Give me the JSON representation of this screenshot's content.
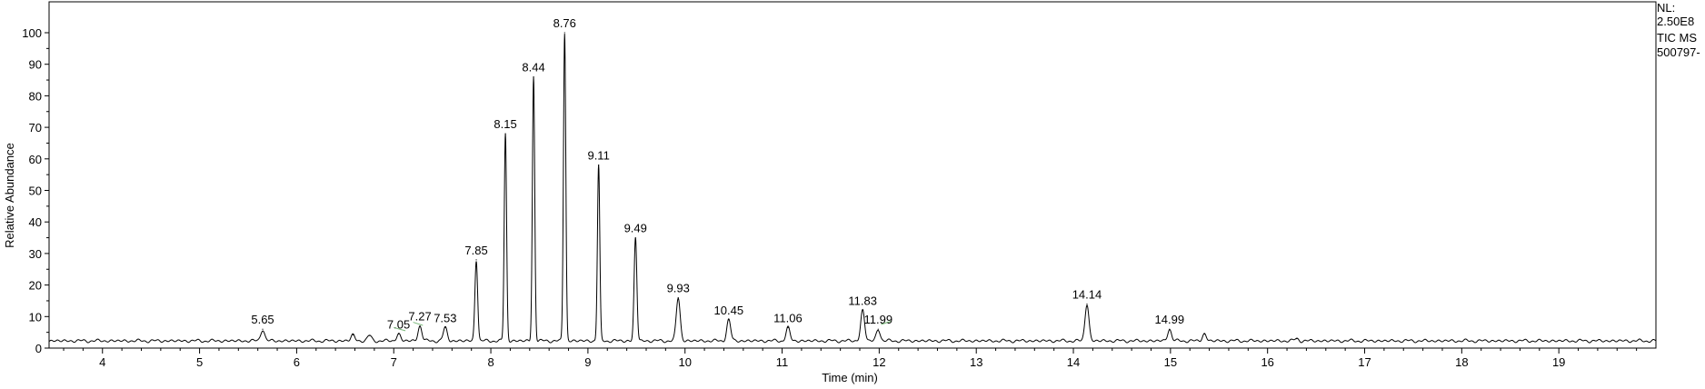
{
  "info": {
    "nl_label": "NL:",
    "nl_value": "2.50E8",
    "trace_label": "TIC  MS",
    "sample_id": "500797-"
  },
  "chart_data": {
    "type": "line",
    "title": "",
    "xlabel": "Time (min)",
    "ylabel": "Relative Abundance",
    "xlim": [
      3.45,
      20.0
    ],
    "ylim": [
      0,
      105
    ],
    "x_ticks": [
      4,
      5,
      6,
      7,
      8,
      9,
      10,
      11,
      12,
      13,
      14,
      15,
      16,
      17,
      18,
      19
    ],
    "y_ticks": [
      0,
      10,
      20,
      30,
      40,
      50,
      60,
      70,
      80,
      90,
      100
    ],
    "baseline": 2.3,
    "peaks": [
      {
        "rt": 5.65,
        "height": 6,
        "label": "5.65"
      },
      {
        "rt": 6.58,
        "height": 4.2,
        "label": ""
      },
      {
        "rt": 6.75,
        "height": 4,
        "label": ""
      },
      {
        "rt": 7.05,
        "height": 4.5,
        "label": "7.05"
      },
      {
        "rt": 7.27,
        "height": 7,
        "label": "7.27"
      },
      {
        "rt": 7.53,
        "height": 6.5,
        "label": "7.53"
      },
      {
        "rt": 7.85,
        "height": 28,
        "label": "7.85"
      },
      {
        "rt": 8.15,
        "height": 68,
        "label": "8.15"
      },
      {
        "rt": 8.44,
        "height": 86,
        "label": "8.44"
      },
      {
        "rt": 8.76,
        "height": 100,
        "label": "8.76"
      },
      {
        "rt": 9.11,
        "height": 58,
        "label": "9.11"
      },
      {
        "rt": 9.49,
        "height": 35,
        "label": "9.49"
      },
      {
        "rt": 9.93,
        "height": 16,
        "label": "9.93"
      },
      {
        "rt": 10.45,
        "height": 9,
        "label": "10.45"
      },
      {
        "rt": 11.06,
        "height": 6.5,
        "label": "11.06"
      },
      {
        "rt": 11.83,
        "height": 12,
        "label": "11.83"
      },
      {
        "rt": 11.99,
        "height": 6,
        "label": "11.99"
      },
      {
        "rt": 14.14,
        "height": 14,
        "label": "14.14"
      },
      {
        "rt": 14.99,
        "height": 6,
        "label": "14.99"
      },
      {
        "rt": 15.35,
        "height": 4.5,
        "label": ""
      },
      {
        "rt": 16.3,
        "height": 3,
        "label": ""
      }
    ]
  },
  "colors": {
    "trace": "#000000",
    "axis": "#000000",
    "annotation_line": "#7ab87a"
  }
}
